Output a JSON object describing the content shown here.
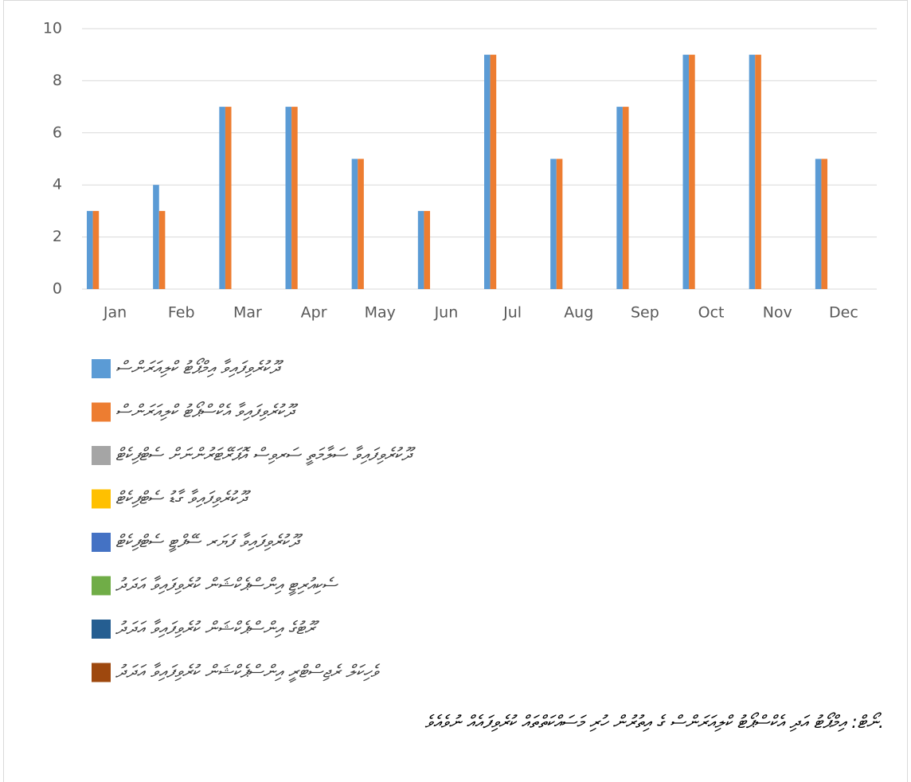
{
  "chart_data": {
    "type": "bar",
    "categories": [
      "Jan",
      "Feb",
      "Mar",
      "Apr",
      "May",
      "Jun",
      "Jul",
      "Aug",
      "Sep",
      "Oct",
      "Nov",
      "Dec"
    ],
    "series": [
      {
        "name": "ދޫކުރެވިފައިވާ އިމްޕޯޓު ކްލިއަރަންސް",
        "color": "#5b9bd5",
        "values": [
          3,
          4,
          7,
          7,
          5,
          3,
          9,
          5,
          7,
          9,
          9,
          5
        ]
      },
      {
        "name": "ދޫކުރެވިފައިވާ އެކްސްޕޯޓު ކްލިއަރަންސް",
        "color": "#ed7d31",
        "values": [
          3,
          3,
          7,
          7,
          5,
          3,
          9,
          5,
          7,
          9,
          9,
          5
        ]
      },
      {
        "name": "ދޫކުރެވިފައިވާ ސަލާމަތީ ސަރވިސް އޮޕަރޭޓަރުންނަށް ސެޓްފިކެޓް",
        "color": "#a5a5a5",
        "values": [
          0,
          0,
          0,
          0,
          0,
          0,
          0,
          0,
          0,
          0,
          0,
          0
        ]
      },
      {
        "name": "ދޫކުރެވިފައިވާ ގާޑު ސެޓްފިކެޓް",
        "color": "#ffc000",
        "values": [
          0,
          0,
          0,
          0,
          0,
          0,
          0,
          0,
          0,
          0,
          0,
          0
        ]
      },
      {
        "name": "ދޫކުރެވިފައިވާ ފަޔަރ ސޭފްޓީ ސެޓްފިކެޓް",
        "color": "#4472c4",
        "values": [
          0,
          0,
          0,
          0,
          0,
          0,
          0,
          0,
          0,
          0,
          0,
          0
        ]
      },
      {
        "name": "ސެކިއުރިޓީ އިންސްޕެކްޝަން ކުރެވިފައިވާ އަދަދު",
        "color": "#70ad47",
        "values": [
          0,
          0,
          0,
          0,
          0,
          0,
          0,
          0,
          0,
          0,
          0,
          0
        ]
      },
      {
        "name": "ރޫޓުގެ އިންސްޕެކްޝަން ކުރެވިފައިވާ އަދަދު",
        "color": "#255e91",
        "values": [
          0,
          0,
          0,
          0,
          0,
          0,
          0,
          0,
          0,
          0,
          0,
          0
        ]
      },
      {
        "name": "ވެހިކަލް ރެޖިސްޓްރީ އިންސްޕެކްޝަން ކުރެވިފައިވާ އަދަދު",
        "color": "#9e480e",
        "values": [
          0,
          0,
          0,
          0,
          0,
          0,
          0,
          0,
          0,
          0,
          0,
          0
        ]
      }
    ],
    "ylim": [
      0,
      10
    ],
    "yticks": [
      0,
      2,
      4,
      6,
      8,
      10
    ],
    "grid": true,
    "note": "ނޯޓް: އިމްޕޯޓު އަދި އެކްސްޕޯޓު ކްލިއަރަންސް ގެ އިތުރުން ހުރި މަސައްކަތްތައް ކުރެވިފައެއް ނުވެއެވެ."
  }
}
